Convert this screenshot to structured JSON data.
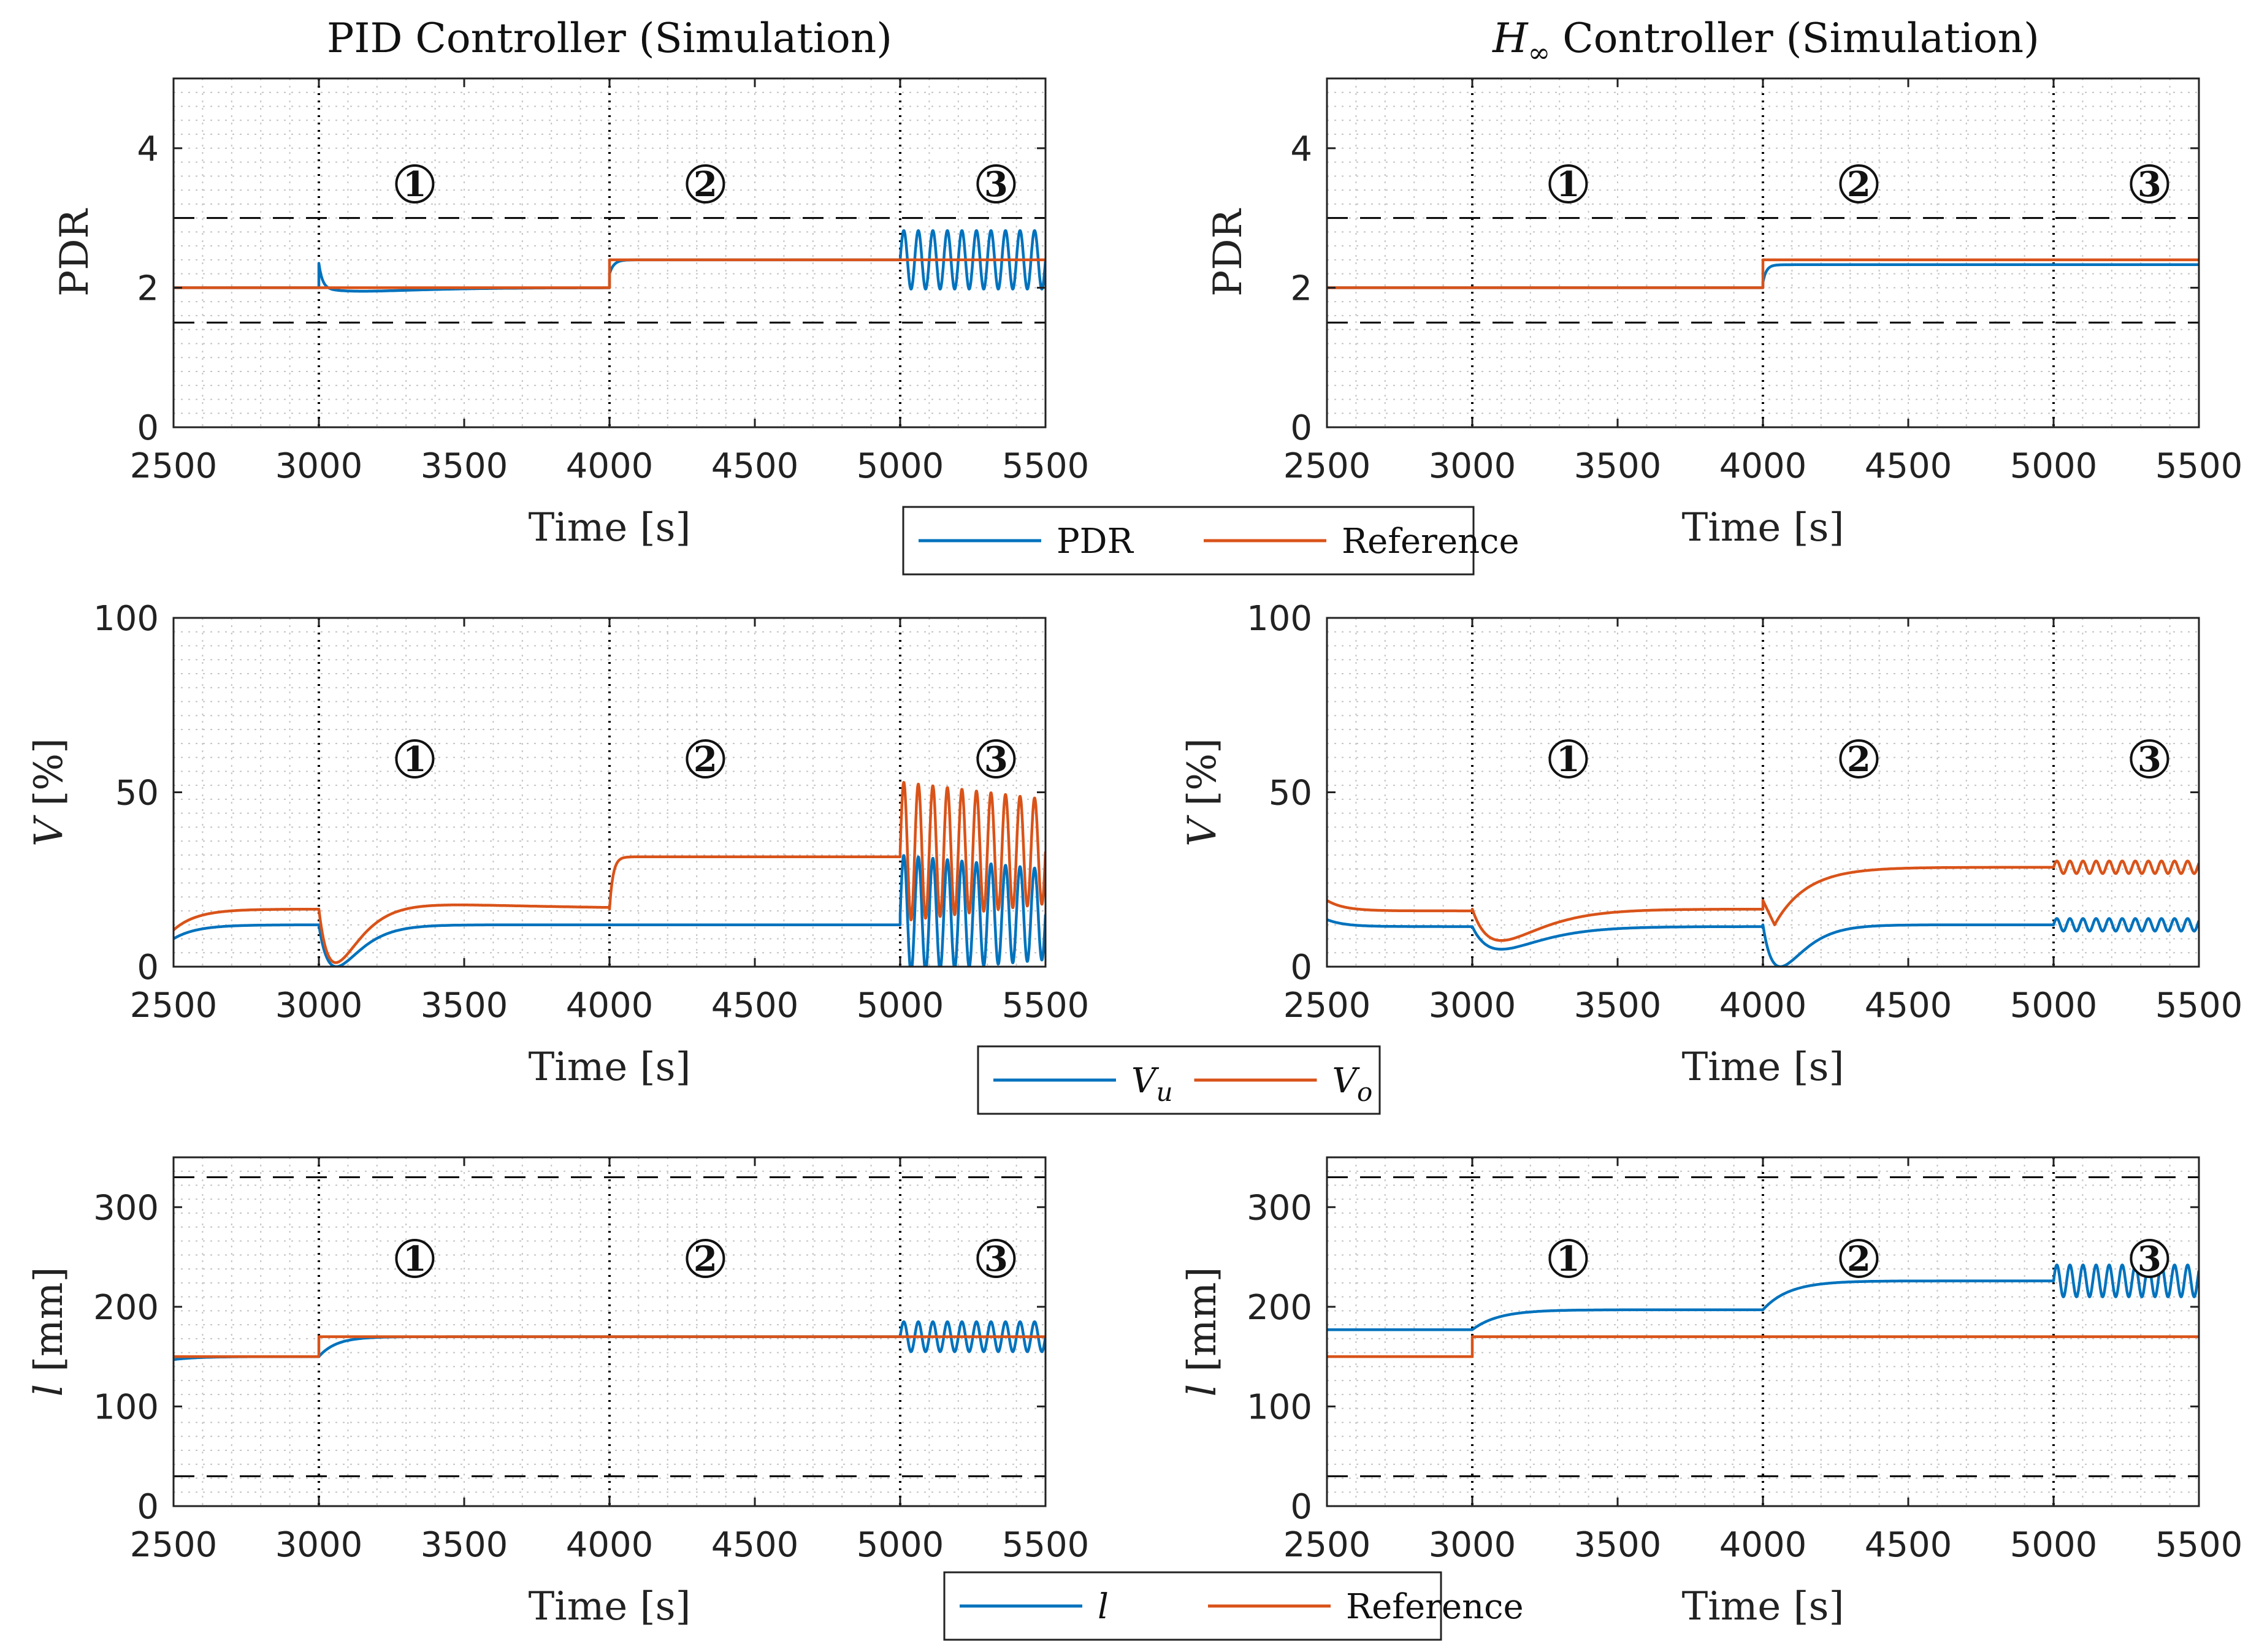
{
  "figure": {
    "columns": [
      "PID Controller (Simulation)",
      "Controller (Simulation)"
    ],
    "hinf_symbol": {
      "base": "H",
      "sub": "∞"
    },
    "region_markers": [
      "①",
      "②",
      "③"
    ],
    "legends": [
      {
        "row": 0,
        "entries": [
          {
            "label": "PDR",
            "color": "#0072BD"
          },
          {
            "label": "Reference",
            "color": "#D95319"
          }
        ]
      },
      {
        "row": 1,
        "entries": [
          {
            "label": "V",
            "sub": "u",
            "color": "#0072BD"
          },
          {
            "label": "V",
            "sub": "o",
            "color": "#D95319"
          }
        ]
      },
      {
        "row": 2,
        "entries": [
          {
            "label": "l",
            "italic": true,
            "color": "#0072BD"
          },
          {
            "label": "Reference",
            "color": "#D95319"
          }
        ]
      }
    ],
    "colors": {
      "blue": "#0072BD",
      "orange": "#D95319",
      "limit": "#000000",
      "grid": "#c8c8c8"
    }
  },
  "chart_data": [
    {
      "type": "line",
      "row": 0,
      "col": 0,
      "title": "PID Controller (Simulation)",
      "xlabel": "Time [s]",
      "ylabel": "PDR",
      "xlim": [
        2500,
        5500
      ],
      "ylim": [
        0,
        5
      ],
      "xticks": [
        "2500",
        "3000",
        "3500",
        "4000",
        "4500",
        "5000",
        "5500"
      ],
      "yticks": [
        "0",
        "2",
        "4"
      ],
      "ytick_values": [
        0,
        2,
        4
      ],
      "vlines": [
        3000,
        4000,
        5000
      ],
      "hlines": [
        1.5,
        3
      ],
      "series": [
        {
          "name": "PDR",
          "color": "#0072BD",
          "segments": [
            {
              "kind": "const",
              "x0": 2500,
              "x1": 3000,
              "v": 2.0
            },
            {
              "kind": "exp",
              "x0": 3000,
              "x1": 4000,
              "base": 2.0,
              "amp": 0.35,
              "tau": 12,
              "amp2": -0.05,
              "tau2": 150
            },
            {
              "kind": "exp",
              "x0": 4000,
              "x1": 5000,
              "base": 2.4,
              "amp": -0.2,
              "tau": 15
            },
            {
              "kind": "sine",
              "x0": 5000,
              "x1": 5500,
              "center": 2.4,
              "amp": 0.42,
              "period": 50
            }
          ]
        },
        {
          "name": "Reference",
          "color": "#D95319",
          "segments": [
            {
              "kind": "const",
              "x0": 2500,
              "x1": 4000,
              "v": 2.0
            },
            {
              "kind": "const",
              "x0": 4000,
              "x1": 5500,
              "v": 2.4
            }
          ]
        }
      ]
    },
    {
      "type": "line",
      "row": 0,
      "col": 1,
      "xlabel": "Time [s]",
      "ylabel": "PDR",
      "xlim": [
        2500,
        5500
      ],
      "ylim": [
        0,
        5
      ],
      "xticks": [
        "2500",
        "3000",
        "3500",
        "4000",
        "4500",
        "5000",
        "5500"
      ],
      "yticks": [
        "0",
        "2",
        "4"
      ],
      "ytick_values": [
        0,
        2,
        4
      ],
      "vlines": [
        3000,
        4000,
        5000
      ],
      "hlines": [
        1.5,
        3
      ],
      "series": [
        {
          "name": "PDR",
          "color": "#0072BD",
          "segments": [
            {
              "kind": "const",
              "x0": 2500,
              "x1": 4000,
              "v": 2.0
            },
            {
              "kind": "exp",
              "x0": 4000,
              "x1": 5500,
              "base": 2.33,
              "amp": -0.25,
              "tau": 12
            }
          ]
        },
        {
          "name": "Reference",
          "color": "#D95319",
          "segments": [
            {
              "kind": "const",
              "x0": 2500,
              "x1": 4000,
              "v": 2.0
            },
            {
              "kind": "const",
              "x0": 4000,
              "x1": 5500,
              "v": 2.4
            }
          ]
        }
      ]
    },
    {
      "type": "line",
      "row": 1,
      "col": 0,
      "xlabel": "Time [s]",
      "ylabel": "V [%]",
      "xlim": [
        2500,
        5500
      ],
      "ylim": [
        0,
        100
      ],
      "xticks": [
        "2500",
        "3000",
        "3500",
        "4000",
        "4500",
        "5000",
        "5500"
      ],
      "yticks": [
        "0",
        "50",
        "100"
      ],
      "ytick_values": [
        0,
        50,
        100
      ],
      "vlines": [
        3000,
        4000,
        5000
      ],
      "hlines": [],
      "series": [
        {
          "name": "V_u",
          "color": "#0072BD",
          "segments": [
            {
              "kind": "exp",
              "x0": 2500,
              "x1": 3000,
              "base": 12,
              "amp": -4,
              "tau": 80
            },
            {
              "kind": "dip",
              "x0": 3000,
              "x1": 4000,
              "base": 12,
              "depth": 12,
              "tmin": 60,
              "tau": 90
            },
            {
              "kind": "const",
              "x0": 4000,
              "x1": 5000,
              "v": 12
            },
            {
              "kind": "sine",
              "x0": 5000,
              "x1": 5500,
              "center": 15,
              "amp": 15,
              "period": 50,
              "decay_from": 32,
              "decay_to": 28
            }
          ]
        },
        {
          "name": "V_o",
          "color": "#D95319",
          "segments": [
            {
              "kind": "exp",
              "x0": 2500,
              "x1": 3000,
              "base": 16.5,
              "amp": -6,
              "tau": 80
            },
            {
              "kind": "dip",
              "x0": 3000,
              "x1": 4000,
              "base": 16.5,
              "depth": 16,
              "tmin": 60,
              "tau": 90,
              "overshoot": 1.5
            },
            {
              "kind": "exp",
              "x0": 4000,
              "x1": 5000,
              "base": 31.5,
              "amp": -15,
              "tau": 12
            },
            {
              "kind": "sine",
              "x0": 5000,
              "x1": 5500,
              "center": 33,
              "amp": 15,
              "period": 50,
              "decay_from": 53,
              "decay_to": 48
            }
          ]
        }
      ]
    },
    {
      "type": "line",
      "row": 1,
      "col": 1,
      "xlabel": "Time [s]",
      "ylabel": "V [%]",
      "xlim": [
        2500,
        5500
      ],
      "ylim": [
        0,
        100
      ],
      "xticks": [
        "2500",
        "3000",
        "3500",
        "4000",
        "4500",
        "5000",
        "5500"
      ],
      "yticks": [
        "0",
        "50",
        "100"
      ],
      "ytick_values": [
        0,
        50,
        100
      ],
      "vlines": [
        3000,
        4000,
        5000
      ],
      "hlines": [],
      "series": [
        {
          "name": "V_u",
          "color": "#0072BD",
          "segments": [
            {
              "kind": "exp",
              "x0": 2500,
              "x1": 3000,
              "base": 11.5,
              "amp": 2,
              "tau": 60
            },
            {
              "kind": "dip",
              "x0": 3000,
              "x1": 4000,
              "base": 11.5,
              "depth": 6.5,
              "tmin": 100,
              "tau": 130
            },
            {
              "kind": "dip",
              "x0": 4000,
              "x1": 5000,
              "base": 12,
              "depth": 12,
              "tmin": 60,
              "tau": 110
            },
            {
              "kind": "sine",
              "x0": 5000,
              "x1": 5500,
              "center": 12,
              "amp": 1.8,
              "period": 45
            }
          ]
        },
        {
          "name": "V_o",
          "color": "#D95319",
          "segments": [
            {
              "kind": "exp",
              "x0": 2500,
              "x1": 3000,
              "base": 16,
              "amp": 3,
              "tau": 60
            },
            {
              "kind": "dip",
              "x0": 3000,
              "x1": 4000,
              "base": 16.5,
              "depth": 9,
              "tmin": 100,
              "tau": 130
            },
            {
              "kind": "rise",
              "x0": 4000,
              "x1": 5000,
              "from": 19,
              "low": 12,
              "to": 28.5,
              "tmin": 40,
              "tau": 110
            },
            {
              "kind": "sine",
              "x0": 5000,
              "x1": 5500,
              "center": 28.5,
              "amp": 1.8,
              "period": 45
            }
          ]
        }
      ]
    },
    {
      "type": "line",
      "row": 2,
      "col": 0,
      "xlabel": "Time [s]",
      "ylabel": "l [mm]",
      "xlim": [
        2500,
        5500
      ],
      "ylim": [
        0,
        350
      ],
      "xticks": [
        "2500",
        "3000",
        "3500",
        "4000",
        "4500",
        "5000",
        "5500"
      ],
      "yticks": [
        "0",
        "100",
        "200",
        "300"
      ],
      "ytick_values": [
        0,
        100,
        200,
        300
      ],
      "vlines": [
        3000,
        4000,
        5000
      ],
      "hlines": [
        30,
        330
      ],
      "series": [
        {
          "name": "l",
          "color": "#0072BD",
          "segments": [
            {
              "kind": "exp",
              "x0": 2500,
              "x1": 3000,
              "base": 150,
              "amp": -3,
              "tau": 80
            },
            {
              "kind": "exp",
              "x0": 3000,
              "x1": 4000,
              "base": 170,
              "amp": -20,
              "tau": 60
            },
            {
              "kind": "const",
              "x0": 4000,
              "x1": 5000,
              "v": 170
            },
            {
              "kind": "sine",
              "x0": 5000,
              "x1": 5500,
              "center": 170,
              "amp": 15,
              "period": 50
            }
          ]
        },
        {
          "name": "Reference",
          "color": "#D95319",
          "segments": [
            {
              "kind": "const",
              "x0": 2500,
              "x1": 3000,
              "v": 150
            },
            {
              "kind": "const",
              "x0": 3000,
              "x1": 5500,
              "v": 170
            }
          ]
        }
      ]
    },
    {
      "type": "line",
      "row": 2,
      "col": 1,
      "xlabel": "Time [s]",
      "ylabel": "l [mm]",
      "xlim": [
        2500,
        5500
      ],
      "ylim": [
        0,
        350
      ],
      "xticks": [
        "2500",
        "3000",
        "3500",
        "4000",
        "4500",
        "5000",
        "5500"
      ],
      "yticks": [
        "0",
        "100",
        "200",
        "300"
      ],
      "ytick_values": [
        0,
        100,
        200,
        300
      ],
      "vlines": [
        3000,
        4000,
        5000
      ],
      "hlines": [
        30,
        330
      ],
      "series": [
        {
          "name": "l",
          "color": "#0072BD",
          "segments": [
            {
              "kind": "const",
              "x0": 2500,
              "x1": 3000,
              "v": 177
            },
            {
              "kind": "exp",
              "x0": 3000,
              "x1": 4000,
              "base": 197,
              "amp": -20,
              "tau": 90
            },
            {
              "kind": "exp",
              "x0": 4000,
              "x1": 5000,
              "base": 226,
              "amp": -29,
              "tau": 90
            },
            {
              "kind": "sine",
              "x0": 5000,
              "x1": 5500,
              "center": 226,
              "amp": 16,
              "period": 45
            }
          ]
        },
        {
          "name": "Reference",
          "color": "#D95319",
          "segments": [
            {
              "kind": "const",
              "x0": 2500,
              "x1": 3000,
              "v": 150
            },
            {
              "kind": "const",
              "x0": 3000,
              "x1": 5500,
              "v": 170
            }
          ]
        }
      ]
    }
  ]
}
